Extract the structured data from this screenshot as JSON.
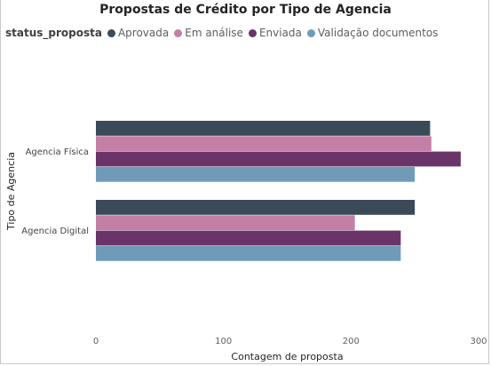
{
  "chart_data": {
    "type": "bar",
    "orientation": "horizontal",
    "title": "Propostas de Crédito por Tipo de Agencia",
    "xlabel": "Contagem de proposta",
    "ylabel": "Tipo de Agencia",
    "categories": [
      "Agencia Física",
      "Agencia Digital"
    ],
    "legend_title": "status_proposta",
    "legend_position": "top-left",
    "grid": false,
    "xlim": [
      0,
      300
    ],
    "xticks": [
      0,
      100,
      200,
      300
    ],
    "series": [
      {
        "name": "Aprovada",
        "color": "#3a4a59",
        "values": [
          262,
          250
        ]
      },
      {
        "name": "Em análise",
        "color": "#c47fa7",
        "values": [
          263,
          203
        ]
      },
      {
        "name": "Enviada",
        "color": "#6a3468",
        "values": [
          286,
          239
        ]
      },
      {
        "name": "Validação documentos",
        "color": "#6f9bb9",
        "values": [
          250,
          239
        ]
      }
    ]
  }
}
